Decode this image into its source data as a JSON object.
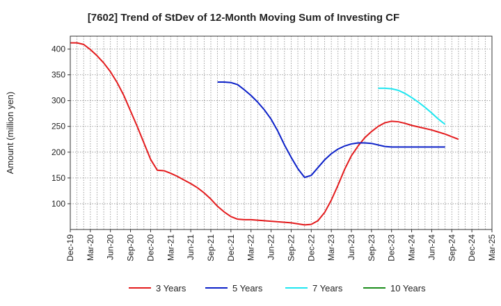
{
  "chart_data": {
    "type": "line",
    "title": "[7602]  Trend of StDev of 12-Month Moving Sum of Investing CF",
    "ylabel": "Amount (million yen)",
    "xlabel": "",
    "ylim": [
      50,
      425
    ],
    "yticks": [
      100,
      150,
      200,
      250,
      300,
      350,
      400
    ],
    "x_months": [
      "Dec-19",
      "Jan-20",
      "Feb-20",
      "Mar-20",
      "Apr-20",
      "May-20",
      "Jun-20",
      "Jul-20",
      "Aug-20",
      "Sep-20",
      "Oct-20",
      "Nov-20",
      "Dec-20",
      "Jan-21",
      "Feb-21",
      "Mar-21",
      "Apr-21",
      "May-21",
      "Jun-21",
      "Jul-21",
      "Aug-21",
      "Sep-21",
      "Oct-21",
      "Nov-21",
      "Dec-21",
      "Jan-22",
      "Feb-22",
      "Mar-22",
      "Apr-22",
      "May-22",
      "Jun-22",
      "Jul-22",
      "Aug-22",
      "Sep-22",
      "Oct-22",
      "Nov-22",
      "Dec-22",
      "Jan-23",
      "Feb-23",
      "Mar-23",
      "Apr-23",
      "May-23",
      "Jun-23",
      "Jul-23",
      "Aug-23",
      "Sep-23",
      "Oct-23",
      "Nov-23",
      "Dec-23",
      "Jan-24",
      "Feb-24",
      "Mar-24",
      "Apr-24",
      "May-24",
      "Jun-24",
      "Jul-24",
      "Aug-24",
      "Sep-24",
      "Oct-24",
      "Nov-24",
      "Dec-24",
      "Jan-25",
      "Feb-25",
      "Mar-25"
    ],
    "xtick_labels": [
      "Dec-19",
      "Mar-20",
      "Jun-20",
      "Sep-20",
      "Dec-20",
      "Mar-21",
      "Jun-21",
      "Sep-21",
      "Dec-21",
      "Mar-22",
      "Jun-22",
      "Sep-22",
      "Dec-22",
      "Mar-23",
      "Jun-23",
      "Sep-23",
      "Dec-23",
      "Mar-24",
      "Jun-24",
      "Sep-24",
      "Dec-24",
      "Mar-25"
    ],
    "grid": true,
    "legend_position": "bottom",
    "series": [
      {
        "name": "3 Years",
        "color": "#e31a1c",
        "start_index": 0,
        "values": [
          412,
          412,
          409,
          399,
          387,
          373,
          356,
          335,
          310,
          280,
          250,
          218,
          186,
          165,
          164,
          159,
          153,
          146,
          139,
          131,
          121,
          109,
          95,
          84,
          75,
          70,
          69,
          69,
          68,
          67,
          66,
          65,
          64,
          63,
          61,
          59,
          60,
          67,
          83,
          107,
          136,
          167,
          193,
          212,
          228,
          240,
          250,
          257,
          260,
          259,
          256,
          252,
          249,
          246,
          243,
          239,
          235,
          230,
          225
        ]
      },
      {
        "name": "5 Years",
        "color": "#0a1fc8",
        "start_index": 22,
        "values": [
          336,
          336,
          335,
          331,
          321,
          310,
          297,
          282,
          264,
          241,
          214,
          190,
          168,
          151,
          155,
          170,
          185,
          197,
          206,
          212,
          216,
          218,
          218,
          217,
          214,
          211,
          210,
          210,
          210,
          210,
          210,
          210,
          210,
          210,
          210
        ]
      },
      {
        "name": "7 Years",
        "color": "#1ee6f0",
        "start_index": 46,
        "values": [
          324,
          324,
          323,
          320,
          314,
          306,
          297,
          287,
          276,
          264,
          254
        ]
      },
      {
        "name": "10 Years",
        "color": "#1a8c1a",
        "start_index": 0,
        "values": []
      }
    ]
  }
}
